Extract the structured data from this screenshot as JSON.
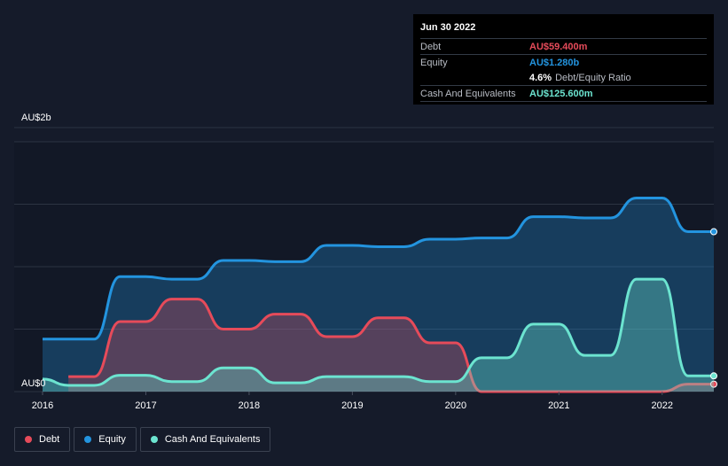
{
  "tooltip": {
    "date": "Jun 30 2022",
    "debt_label": "Debt",
    "debt_value": "AU$59.400m",
    "equity_label": "Equity",
    "equity_value": "AU$1.280b",
    "ratio_value": "4.6%",
    "ratio_label": "Debt/Equity Ratio",
    "cash_label": "Cash And Equivalents",
    "cash_value": "AU$125.600m"
  },
  "legend": [
    {
      "label": "Debt",
      "color": "#e64b5a"
    },
    {
      "label": "Equity",
      "color": "#2394df"
    },
    {
      "label": "Cash And Equivalents",
      "color": "#6ce4d0"
    }
  ],
  "chart_data": {
    "type": "area",
    "title": "",
    "xlabel": "",
    "ylabel": "",
    "y_unit": "AU$ billions",
    "y_tick_labels": [
      {
        "value": 2.0,
        "label": "AU$2b"
      },
      {
        "value": 0.0,
        "label": "AU$0"
      }
    ],
    "ylim": [
      0,
      2.0
    ],
    "xlim": [
      2016.0,
      2022.5
    ],
    "x_tick_labels": [
      "2016",
      "2017",
      "2018",
      "2019",
      "2020",
      "2021",
      "2022"
    ],
    "grid": true,
    "legend_position": "bottom-left",
    "series": [
      {
        "name": "Equity",
        "color": "#2394df",
        "points": [
          [
            2016.0,
            0.42
          ],
          [
            2016.5,
            0.42
          ],
          [
            2016.75,
            0.92
          ],
          [
            2017.0,
            0.92
          ],
          [
            2017.25,
            0.9
          ],
          [
            2017.5,
            0.9
          ],
          [
            2017.75,
            1.05
          ],
          [
            2018.0,
            1.05
          ],
          [
            2018.25,
            1.04
          ],
          [
            2018.5,
            1.04
          ],
          [
            2018.75,
            1.17
          ],
          [
            2019.0,
            1.17
          ],
          [
            2019.25,
            1.16
          ],
          [
            2019.5,
            1.16
          ],
          [
            2019.75,
            1.22
          ],
          [
            2020.0,
            1.22
          ],
          [
            2020.25,
            1.23
          ],
          [
            2020.5,
            1.23
          ],
          [
            2020.75,
            1.4
          ],
          [
            2021.0,
            1.4
          ],
          [
            2021.25,
            1.39
          ],
          [
            2021.5,
            1.39
          ],
          [
            2021.75,
            1.55
          ],
          [
            2022.0,
            1.55
          ],
          [
            2022.25,
            1.28
          ],
          [
            2022.5,
            1.28
          ]
        ]
      },
      {
        "name": "Debt",
        "color": "#e64b5a",
        "points": [
          [
            2016.25,
            0.12
          ],
          [
            2016.5,
            0.12
          ],
          [
            2016.75,
            0.56
          ],
          [
            2017.0,
            0.56
          ],
          [
            2017.25,
            0.74
          ],
          [
            2017.5,
            0.74
          ],
          [
            2017.75,
            0.5
          ],
          [
            2018.0,
            0.5
          ],
          [
            2018.25,
            0.62
          ],
          [
            2018.5,
            0.62
          ],
          [
            2018.75,
            0.44
          ],
          [
            2019.0,
            0.44
          ],
          [
            2019.25,
            0.59
          ],
          [
            2019.5,
            0.59
          ],
          [
            2019.75,
            0.39
          ],
          [
            2020.0,
            0.39
          ],
          [
            2020.25,
            0.0
          ],
          [
            2020.5,
            0.0
          ],
          [
            2020.75,
            0.0
          ],
          [
            2021.0,
            0.0
          ],
          [
            2021.25,
            0.0
          ],
          [
            2021.5,
            0.0
          ],
          [
            2021.75,
            0.0
          ],
          [
            2022.0,
            0.0
          ],
          [
            2022.25,
            0.0594
          ],
          [
            2022.5,
            0.0594
          ]
        ]
      },
      {
        "name": "Cash And Equivalents",
        "color": "#6ce4d0",
        "points": [
          [
            2016.0,
            0.1
          ],
          [
            2016.25,
            0.05
          ],
          [
            2016.5,
            0.05
          ],
          [
            2016.75,
            0.13
          ],
          [
            2017.0,
            0.13
          ],
          [
            2017.25,
            0.08
          ],
          [
            2017.5,
            0.08
          ],
          [
            2017.75,
            0.19
          ],
          [
            2018.0,
            0.19
          ],
          [
            2018.25,
            0.07
          ],
          [
            2018.5,
            0.07
          ],
          [
            2018.75,
            0.12
          ],
          [
            2019.0,
            0.12
          ],
          [
            2019.25,
            0.12
          ],
          [
            2019.5,
            0.12
          ],
          [
            2019.75,
            0.08
          ],
          [
            2020.0,
            0.08
          ],
          [
            2020.25,
            0.27
          ],
          [
            2020.5,
            0.27
          ],
          [
            2020.75,
            0.54
          ],
          [
            2021.0,
            0.54
          ],
          [
            2021.25,
            0.29
          ],
          [
            2021.5,
            0.29
          ],
          [
            2021.75,
            0.9
          ],
          [
            2022.0,
            0.9
          ],
          [
            2022.25,
            0.1256
          ],
          [
            2022.5,
            0.1256
          ]
        ]
      }
    ]
  }
}
